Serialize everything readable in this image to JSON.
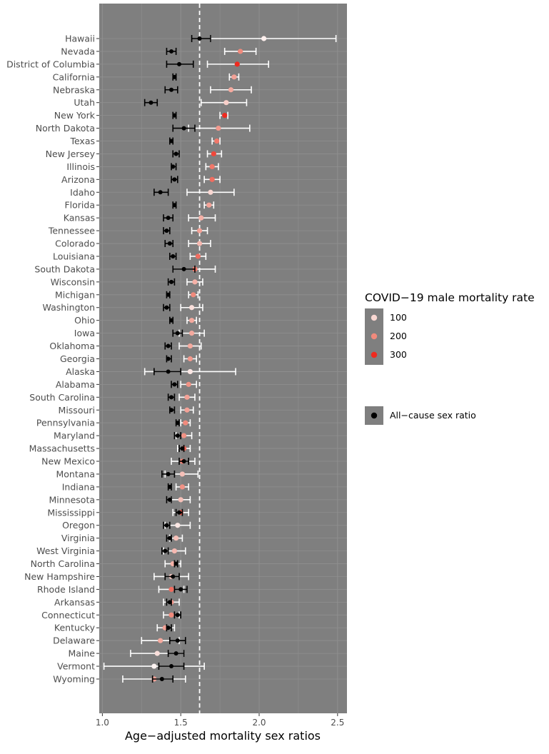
{
  "chart_data": {
    "type": "dot-errorbar",
    "xlabel": "Age−adjusted mortality sex ratios",
    "xlim": [
      0.98,
      2.56
    ],
    "xticks": [
      1.0,
      1.5,
      2.0,
      2.5
    ],
    "xtick_labels": [
      "1.0",
      "1.5",
      "2.0",
      "2.5"
    ],
    "reference_line_x": 1.62,
    "grid": true,
    "legend": {
      "position": "right",
      "color_title": "COVID−19 male mortality rate",
      "color_entries": [
        {
          "label": "100",
          "color": "#f9d7d2"
        },
        {
          "label": "200",
          "color": "#f08a7c"
        },
        {
          "label": "300",
          "color": "#ee2a1f"
        }
      ],
      "allcause_label": "All−cause sex ratio"
    },
    "colors": {
      "panel": "#7f7f7f",
      "allcause": "#000000",
      "covid_errorbar": "#ffffff",
      "refline": "#ffffff"
    },
    "states": [
      {
        "name": "Hawaii",
        "allcause": [
          1.62,
          1.57,
          1.69
        ],
        "covid": [
          2.03,
          1.69,
          2.49
        ],
        "rate": 40
      },
      {
        "name": "Nevada",
        "allcause": [
          1.44,
          1.41,
          1.47
        ],
        "covid": [
          1.88,
          1.78,
          1.98
        ],
        "rate": 200
      },
      {
        "name": "District of Columbia",
        "allcause": [
          1.49,
          1.41,
          1.58
        ],
        "covid": [
          1.86,
          1.67,
          2.06
        ],
        "rate": 300
      },
      {
        "name": "California",
        "allcause": [
          1.46,
          1.45,
          1.47
        ],
        "covid": [
          1.84,
          1.81,
          1.87
        ],
        "rate": 170
      },
      {
        "name": "Nebraska",
        "allcause": [
          1.44,
          1.4,
          1.48
        ],
        "covid": [
          1.82,
          1.69,
          1.95
        ],
        "rate": 160
      },
      {
        "name": "Utah",
        "allcause": [
          1.31,
          1.27,
          1.35
        ],
        "covid": [
          1.79,
          1.63,
          1.92
        ],
        "rate": 110
      },
      {
        "name": "New York",
        "allcause": [
          1.46,
          1.45,
          1.47
        ],
        "covid": [
          1.78,
          1.75,
          1.8
        ],
        "rate": 300
      },
      {
        "name": "North Dakota",
        "allcause": [
          1.52,
          1.45,
          1.59
        ],
        "covid": [
          1.74,
          1.55,
          1.94
        ],
        "rate": 180
      },
      {
        "name": "Texas",
        "allcause": [
          1.44,
          1.43,
          1.45
        ],
        "covid": [
          1.73,
          1.7,
          1.75
        ],
        "rate": 220
      },
      {
        "name": "New Jersey",
        "allcause": [
          1.47,
          1.45,
          1.49
        ],
        "covid": [
          1.71,
          1.67,
          1.76
        ],
        "rate": 270
      },
      {
        "name": "Illinois",
        "allcause": [
          1.45,
          1.44,
          1.47
        ],
        "covid": [
          1.7,
          1.66,
          1.74
        ],
        "rate": 220
      },
      {
        "name": "Arizona",
        "allcause": [
          1.46,
          1.44,
          1.48
        ],
        "covid": [
          1.7,
          1.65,
          1.75
        ],
        "rate": 230
      },
      {
        "name": "Idaho",
        "allcause": [
          1.37,
          1.33,
          1.42
        ],
        "covid": [
          1.69,
          1.54,
          1.84
        ],
        "rate": 100
      },
      {
        "name": "Florida",
        "allcause": [
          1.46,
          1.45,
          1.47
        ],
        "covid": [
          1.68,
          1.65,
          1.71
        ],
        "rate": 170
      },
      {
        "name": "Kansas",
        "allcause": [
          1.42,
          1.39,
          1.45
        ],
        "covid": [
          1.63,
          1.55,
          1.72
        ],
        "rate": 150
      },
      {
        "name": "Tennessee",
        "allcause": [
          1.41,
          1.39,
          1.43
        ],
        "covid": [
          1.62,
          1.57,
          1.67
        ],
        "rate": 170
      },
      {
        "name": "Colorado",
        "allcause": [
          1.43,
          1.4,
          1.45
        ],
        "covid": [
          1.62,
          1.55,
          1.69
        ],
        "rate": 140
      },
      {
        "name": "Louisiana",
        "allcause": [
          1.45,
          1.43,
          1.47
        ],
        "covid": [
          1.61,
          1.56,
          1.66
        ],
        "rate": 230
      },
      {
        "name": "South Dakota",
        "allcause": [
          1.52,
          1.45,
          1.59
        ],
        "covid": [
          1.59,
          1.45,
          1.72
        ],
        "rate": 220
      },
      {
        "name": "Wisconsin",
        "allcause": [
          1.44,
          1.42,
          1.46
        ],
        "covid": [
          1.59,
          1.54,
          1.64
        ],
        "rate": 150
      },
      {
        "name": "Michigan",
        "allcause": [
          1.42,
          1.41,
          1.43
        ],
        "covid": [
          1.58,
          1.55,
          1.61
        ],
        "rate": 200
      },
      {
        "name": "Washington",
        "allcause": [
          1.41,
          1.39,
          1.43
        ],
        "covid": [
          1.57,
          1.5,
          1.64
        ],
        "rate": 80
      },
      {
        "name": "Ohio",
        "allcause": [
          1.44,
          1.43,
          1.45
        ],
        "covid": [
          1.57,
          1.54,
          1.6
        ],
        "rate": 160
      },
      {
        "name": "Iowa",
        "allcause": [
          1.48,
          1.45,
          1.51
        ],
        "covid": [
          1.57,
          1.49,
          1.65
        ],
        "rate": 160
      },
      {
        "name": "Oklahoma",
        "allcause": [
          1.42,
          1.4,
          1.44
        ],
        "covid": [
          1.56,
          1.49,
          1.63
        ],
        "rate": 160
      },
      {
        "name": "Georgia",
        "allcause": [
          1.42,
          1.41,
          1.44
        ],
        "covid": [
          1.56,
          1.52,
          1.6
        ],
        "rate": 180
      },
      {
        "name": "Alaska",
        "allcause": [
          1.42,
          1.33,
          1.5
        ],
        "covid": [
          1.56,
          1.27,
          1.85
        ],
        "rate": 60
      },
      {
        "name": "Alabama",
        "allcause": [
          1.46,
          1.44,
          1.48
        ],
        "covid": [
          1.55,
          1.5,
          1.6
        ],
        "rate": 190
      },
      {
        "name": "South Carolina",
        "allcause": [
          1.44,
          1.42,
          1.46
        ],
        "covid": [
          1.54,
          1.49,
          1.59
        ],
        "rate": 170
      },
      {
        "name": "Missouri",
        "allcause": [
          1.44,
          1.43,
          1.46
        ],
        "covid": [
          1.54,
          1.5,
          1.58
        ],
        "rate": 170
      },
      {
        "name": "Pennsylvania",
        "allcause": [
          1.48,
          1.47,
          1.49
        ],
        "covid": [
          1.53,
          1.5,
          1.56
        ],
        "rate": 200
      },
      {
        "name": "Maryland",
        "allcause": [
          1.48,
          1.46,
          1.5
        ],
        "covid": [
          1.52,
          1.47,
          1.57
        ],
        "rate": 190
      },
      {
        "name": "Massachusetts",
        "allcause": [
          1.51,
          1.49,
          1.52
        ],
        "covid": [
          1.52,
          1.48,
          1.56
        ],
        "rate": 240
      },
      {
        "name": "New Mexico",
        "allcause": [
          1.52,
          1.49,
          1.55
        ],
        "covid": [
          1.51,
          1.44,
          1.59
        ],
        "rate": 210
      },
      {
        "name": "Montana",
        "allcause": [
          1.42,
          1.38,
          1.46
        ],
        "covid": [
          1.51,
          1.4,
          1.61
        ],
        "rate": 130
      },
      {
        "name": "Indiana",
        "allcause": [
          1.43,
          1.42,
          1.44
        ],
        "covid": [
          1.51,
          1.47,
          1.55
        ],
        "rate": 190
      },
      {
        "name": "Minnesota",
        "allcause": [
          1.43,
          1.41,
          1.44
        ],
        "covid": [
          1.5,
          1.44,
          1.56
        ],
        "rate": 130
      },
      {
        "name": "Mississippi",
        "allcause": [
          1.49,
          1.47,
          1.51
        ],
        "covid": [
          1.5,
          1.45,
          1.55
        ],
        "rate": 250
      },
      {
        "name": "Oregon",
        "allcause": [
          1.41,
          1.39,
          1.43
        ],
        "covid": [
          1.48,
          1.4,
          1.56
        ],
        "rate": 60
      },
      {
        "name": "Virginia",
        "allcause": [
          1.43,
          1.41,
          1.44
        ],
        "covid": [
          1.47,
          1.43,
          1.51
        ],
        "rate": 130
      },
      {
        "name": "West Virginia",
        "allcause": [
          1.4,
          1.38,
          1.42
        ],
        "covid": [
          1.46,
          1.39,
          1.53
        ],
        "rate": 140
      },
      {
        "name": "North Carolina",
        "allcause": [
          1.47,
          1.46,
          1.48
        ],
        "covid": [
          1.45,
          1.4,
          1.5
        ],
        "rate": 150
      },
      {
        "name": "New Hampshire",
        "allcause": [
          1.45,
          1.4,
          1.49
        ],
        "covid": [
          1.44,
          1.33,
          1.55
        ],
        "rate": 120
      },
      {
        "name": "Rhode Island",
        "allcause": [
          1.5,
          1.46,
          1.54
        ],
        "covid": [
          1.44,
          1.36,
          1.52
        ],
        "rate": 230
      },
      {
        "name": "Arkansas",
        "allcause": [
          1.43,
          1.41,
          1.44
        ],
        "covid": [
          1.44,
          1.39,
          1.49
        ],
        "rate": 180
      },
      {
        "name": "Connecticut",
        "allcause": [
          1.48,
          1.46,
          1.5
        ],
        "covid": [
          1.44,
          1.39,
          1.49
        ],
        "rate": 200
      },
      {
        "name": "Kentucky",
        "allcause": [
          1.42,
          1.41,
          1.44
        ],
        "covid": [
          1.4,
          1.35,
          1.46
        ],
        "rate": 170
      },
      {
        "name": "Delaware",
        "allcause": [
          1.48,
          1.43,
          1.53
        ],
        "covid": [
          1.37,
          1.25,
          1.49
        ],
        "rate": 160
      },
      {
        "name": "Maine",
        "allcause": [
          1.47,
          1.42,
          1.52
        ],
        "covid": [
          1.35,
          1.18,
          1.52
        ],
        "rate": 80
      },
      {
        "name": "Vermont",
        "allcause": [
          1.44,
          1.36,
          1.52
        ],
        "covid": [
          1.33,
          1.01,
          1.65
        ],
        "rate": 30
      },
      {
        "name": "Wyoming",
        "allcause": [
          1.38,
          1.32,
          1.45
        ],
        "covid": [
          1.33,
          1.13,
          1.53
        ],
        "rate": 170
      }
    ]
  }
}
